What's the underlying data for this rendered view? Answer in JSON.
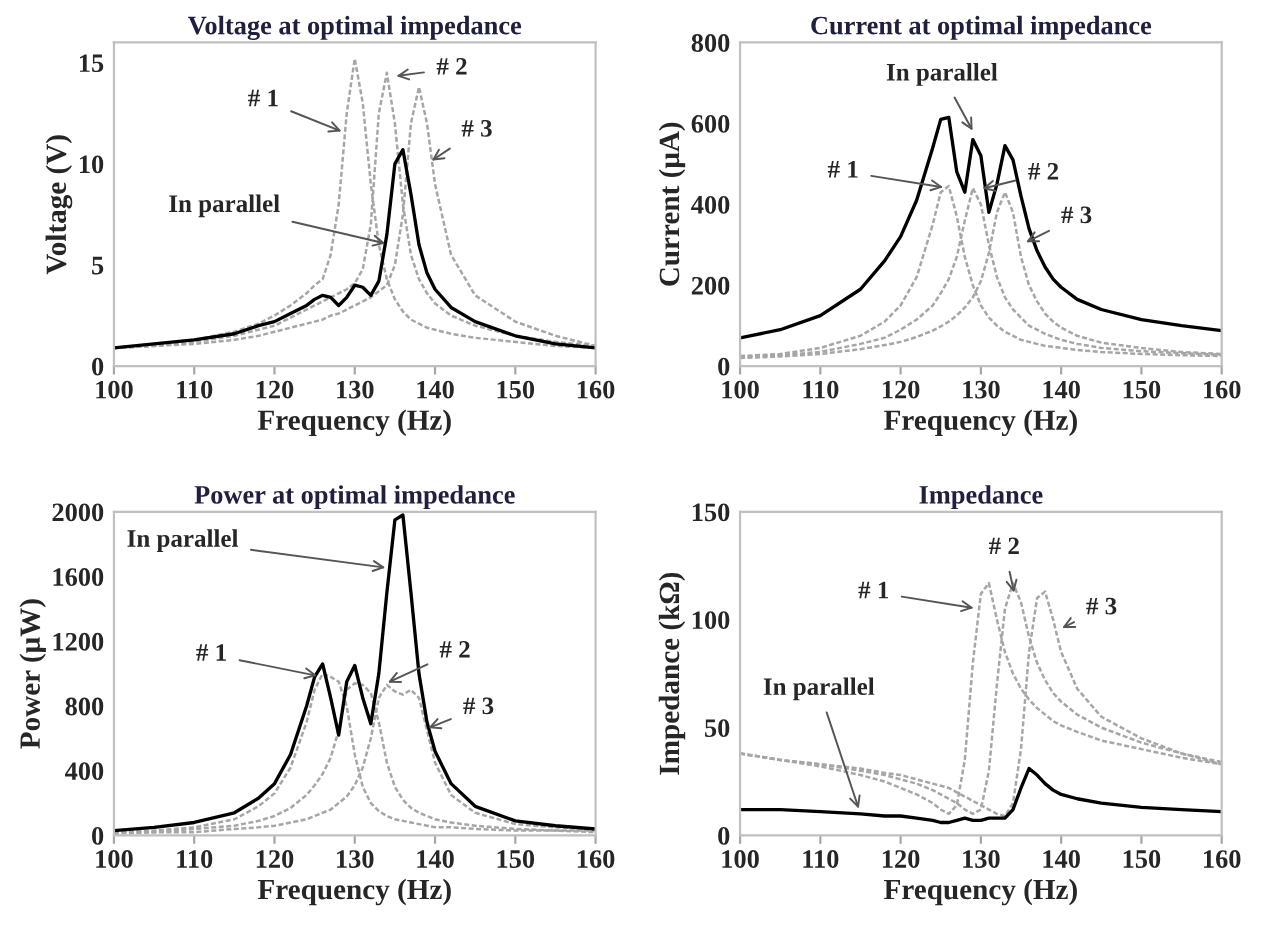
{
  "chart_data": [
    {
      "type": "line",
      "title": "Voltage at optimal impedance",
      "xlabel": "Frequency (Hz)",
      "ylabel": "Voltage (V)",
      "x": [
        100,
        105,
        110,
        115,
        118,
        120,
        122,
        124,
        125,
        126,
        127,
        128,
        129,
        130,
        131,
        132,
        133,
        134,
        135,
        136,
        137,
        138,
        139,
        140,
        142,
        145,
        150,
        155,
        160
      ],
      "xlim": [
        100,
        160
      ],
      "xticks": [
        100,
        110,
        120,
        130,
        140,
        150,
        160
      ],
      "ylim": [
        0,
        16
      ],
      "yticks": [
        0,
        5,
        10,
        15
      ],
      "series": [
        {
          "color": "#a6a6a6",
          "line_style": "dashed",
          "values": [
            0.9,
            1.1,
            1.3,
            1.7,
            2.1,
            2.5,
            3.0,
            3.6,
            4.0,
            4.3,
            5.5,
            8,
            12.5,
            15.2,
            13,
            9,
            6,
            4.3,
            3.3,
            2.7,
            2.3,
            2.1,
            1.9,
            1.8,
            1.6,
            1.4,
            1.2,
            1.0,
            0.9
          ]
        },
        {
          "color": "#a6a6a6",
          "line_style": "dashed",
          "values": [
            0.9,
            1.0,
            1.2,
            1.5,
            1.8,
            2.0,
            2.4,
            2.8,
            3.0,
            3.2,
            3.4,
            3.6,
            3.8,
            4.1,
            4.8,
            7,
            12.5,
            14.5,
            12,
            8,
            5.5,
            4.3,
            3.6,
            3.1,
            2.5,
            2.0,
            1.5,
            1.2,
            1.0
          ]
        },
        {
          "color": "#a6a6a6",
          "line_style": "dashed",
          "values": [
            0.9,
            1.0,
            1.1,
            1.3,
            1.5,
            1.7,
            1.9,
            2.1,
            2.2,
            2.3,
            2.5,
            2.6,
            2.8,
            3.0,
            3.2,
            3.4,
            3.7,
            4.0,
            5,
            7.5,
            12,
            13.8,
            12,
            9,
            5.5,
            3.5,
            2.2,
            1.5,
            1.0
          ]
        },
        {
          "color": "#000000",
          "line_style": "solid",
          "values": [
            0.9,
            1.1,
            1.3,
            1.6,
            2.0,
            2.2,
            2.6,
            3.0,
            3.3,
            3.5,
            3.4,
            3.0,
            3.4,
            4.0,
            3.9,
            3.5,
            4.2,
            6.5,
            10,
            10.7,
            8.5,
            6,
            4.6,
            3.8,
            2.9,
            2.2,
            1.5,
            1.1,
            0.9
          ]
        }
      ],
      "annotations": [
        {
          "text": "# 1",
          "x": 129,
          "y": 11.5
        },
        {
          "text": "# 2",
          "x": 134.5,
          "y": 14.3
        },
        {
          "text": "# 3",
          "x": 139,
          "y": 10
        },
        {
          "text": "In parallel",
          "x": 134.5,
          "y": 6
        }
      ]
    },
    {
      "type": "line",
      "title": "Current at optimal impedance",
      "xlabel": "Frequency (Hz)",
      "ylabel": "Current (μA)",
      "x": [
        100,
        105,
        110,
        115,
        118,
        120,
        122,
        124,
        125,
        126,
        127,
        128,
        129,
        130,
        131,
        132,
        133,
        134,
        135,
        136,
        137,
        138,
        139,
        140,
        142,
        145,
        150,
        155,
        160
      ],
      "xlim": [
        100,
        160
      ],
      "xticks": [
        100,
        110,
        120,
        130,
        140,
        150,
        160
      ],
      "ylim": [
        0,
        800
      ],
      "yticks": [
        0,
        200,
        400,
        600,
        800
      ],
      "series": [
        {
          "color": "#a6a6a6",
          "line_style": "dashed",
          "values": [
            25,
            30,
            45,
            75,
            110,
            150,
            220,
            350,
            430,
            445,
            370,
            270,
            200,
            150,
            120,
            100,
            85,
            75,
            65,
            60,
            55,
            50,
            48,
            45,
            40,
            35,
            30,
            27,
            25
          ]
        },
        {
          "color": "#a6a6a6",
          "line_style": "dashed",
          "values": [
            22,
            27,
            35,
            55,
            70,
            90,
            115,
            150,
            180,
            215,
            270,
            360,
            440,
            400,
            300,
            220,
            170,
            140,
            120,
            100,
            90,
            80,
            72,
            65,
            55,
            45,
            37,
            32,
            28
          ]
        },
        {
          "color": "#a6a6a6",
          "line_style": "dashed",
          "values": [
            20,
            24,
            30,
            42,
            52,
            60,
            72,
            88,
            98,
            110,
            125,
            145,
            170,
            210,
            280,
            380,
            430,
            380,
            270,
            200,
            160,
            130,
            110,
            95,
            75,
            58,
            45,
            35,
            30
          ]
        },
        {
          "color": "#000000",
          "line_style": "solid",
          "values": [
            70,
            90,
            125,
            190,
            260,
            320,
            410,
            540,
            610,
            615,
            480,
            430,
            560,
            520,
            380,
            450,
            545,
            510,
            420,
            340,
            285,
            245,
            215,
            195,
            165,
            140,
            115,
            100,
            88
          ]
        }
      ],
      "annotations": [
        {
          "text": "# 1",
          "x": 126,
          "y": 440
        },
        {
          "text": "# 2",
          "x": 129.5,
          "y": 435
        },
        {
          "text": "# 3",
          "x": 135,
          "y": 300
        },
        {
          "text": "In parallel",
          "x": 129.3,
          "y": 570
        }
      ]
    },
    {
      "type": "line",
      "title": "Power at optimal impedance",
      "xlabel": "Frequency (Hz)",
      "ylabel": "Power (μW)",
      "x": [
        100,
        105,
        110,
        115,
        118,
        120,
        122,
        124,
        125,
        126,
        127,
        128,
        129,
        130,
        131,
        132,
        133,
        134,
        135,
        136,
        137,
        138,
        139,
        140,
        142,
        145,
        150,
        155,
        160
      ],
      "xlim": [
        100,
        160
      ],
      "xticks": [
        100,
        110,
        120,
        130,
        140,
        150,
        160
      ],
      "ylim": [
        0,
        2000
      ],
      "yticks": [
        0,
        400,
        800,
        1200,
        1600,
        2000
      ],
      "series": [
        {
          "color": "#a6a6a6",
          "line_style": "dashed",
          "values": [
            20,
            30,
            50,
            100,
            180,
            260,
            420,
            700,
            900,
            1000,
            980,
            950,
            800,
            500,
            300,
            200,
            150,
            120,
            100,
            90,
            80,
            70,
            60,
            50,
            50,
            40,
            30,
            30,
            20
          ]
        },
        {
          "color": "#a6a6a6",
          "line_style": "dashed",
          "values": [
            20,
            20,
            40,
            60,
            90,
            120,
            170,
            250,
            310,
            380,
            480,
            650,
            900,
            940,
            930,
            880,
            700,
            450,
            300,
            220,
            170,
            140,
            120,
            100,
            80,
            60,
            40,
            30,
            30
          ]
        },
        {
          "color": "#a6a6a6",
          "line_style": "dashed",
          "values": [
            10,
            20,
            20,
            40,
            50,
            60,
            80,
            100,
            120,
            140,
            160,
            200,
            240,
            310,
            420,
            600,
            850,
            930,
            890,
            870,
            900,
            850,
            650,
            450,
            250,
            140,
            70,
            50,
            40
          ]
        },
        {
          "color": "#000000",
          "line_style": "solid",
          "values": [
            30,
            50,
            80,
            140,
            230,
            320,
            500,
            800,
            980,
            1060,
            850,
            620,
            950,
            1050,
            850,
            690,
            1000,
            1500,
            1950,
            1980,
            1500,
            1000,
            700,
            520,
            320,
            180,
            90,
            60,
            40
          ]
        }
      ],
      "annotations": [
        {
          "text": "# 1",
          "x": 126,
          "y": 980
        },
        {
          "text": "# 2",
          "x": 133.5,
          "y": 930
        },
        {
          "text": "# 3",
          "x": 138.5,
          "y": 650
        },
        {
          "text": "In parallel",
          "x": 134.5,
          "y": 1650
        }
      ]
    },
    {
      "type": "line",
      "title": "Impedance",
      "xlabel": "Frequency (Hz)",
      "ylabel": "Impedance (kΩ)",
      "x": [
        100,
        105,
        110,
        115,
        118,
        120,
        122,
        124,
        125,
        126,
        127,
        128,
        129,
        130,
        131,
        132,
        133,
        134,
        135,
        136,
        137,
        138,
        139,
        140,
        142,
        145,
        150,
        155,
        160
      ],
      "xlim": [
        100,
        160
      ],
      "xticks": [
        100,
        110,
        120,
        130,
        140,
        150,
        160
      ],
      "ylim": [
        0,
        150
      ],
      "yticks": [
        0,
        50,
        100,
        150
      ],
      "series": [
        {
          "color": "#a6a6a6",
          "line_style": "dashed",
          "values": [
            38,
            35,
            32,
            28,
            25,
            22,
            19,
            15,
            12,
            10,
            14,
            35,
            80,
            112,
            117,
            100,
            85,
            75,
            68,
            63,
            59,
            56,
            53,
            51,
            48,
            44,
            40,
            36,
            33
          ]
        },
        {
          "color": "#a6a6a6",
          "line_style": "dashed",
          "values": [
            38,
            35,
            33,
            30,
            28,
            26,
            24,
            21,
            19,
            17,
            15,
            12,
            10,
            12,
            30,
            70,
            105,
            117,
            108,
            92,
            80,
            72,
            66,
            62,
            56,
            50,
            43,
            38,
            34
          ]
        },
        {
          "color": "#a6a6a6",
          "line_style": "dashed",
          "values": [
            38,
            35,
            33,
            31,
            29,
            28,
            26,
            24,
            23,
            22,
            20,
            18,
            16,
            14,
            12,
            10,
            9,
            15,
            40,
            85,
            110,
            113,
            100,
            85,
            68,
            55,
            45,
            38,
            33
          ]
        },
        {
          "color": "#000000",
          "line_style": "solid",
          "values": [
            12,
            12,
            11,
            10,
            9,
            9,
            8,
            7,
            6,
            6,
            7,
            8,
            7,
            7,
            8,
            8,
            8,
            12,
            22,
            31,
            28,
            24,
            21,
            19,
            17,
            15,
            13,
            12,
            11
          ]
        }
      ],
      "annotations": [
        {
          "text": "# 1",
          "x": 129.8,
          "y": 105
        },
        {
          "text": "# 2",
          "x": 134.3,
          "y": 110
        },
        {
          "text": "# 3",
          "x": 139.5,
          "y": 95
        },
        {
          "text": "In parallel",
          "x": 115,
          "y": 10
        }
      ]
    }
  ]
}
